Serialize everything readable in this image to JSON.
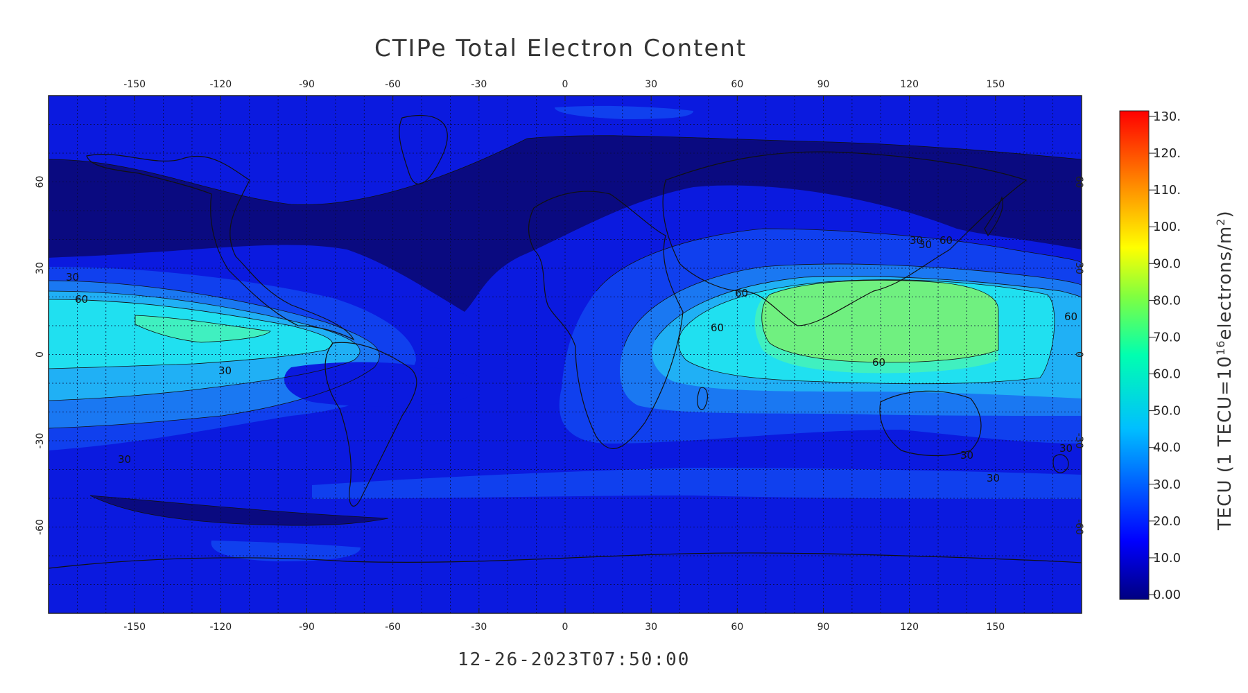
{
  "title": "CTIPe Total Electron Content",
  "timestamp": "12-26-2023T07:50:00",
  "colorbar": {
    "title_prefix": "TECU (1 TECU=10",
    "title_exponent": "16",
    "title_middle": "electrons/m",
    "title_square": "2",
    "title_suffix": ")",
    "ticks": [
      "130.",
      "120.",
      "110.",
      "100.",
      "90.0",
      "80.0",
      "70.0",
      "60.0",
      "50.0",
      "40.0",
      "30.0",
      "20.0",
      "10.0",
      "0.00"
    ]
  },
  "axes": {
    "lon_ticks": [
      "-150",
      "-120",
      "-90",
      "-60",
      "-30",
      "0",
      "30",
      "60",
      "90",
      "120",
      "150"
    ],
    "lat_ticks": [
      "60",
      "30",
      "0",
      "-30",
      "-60"
    ]
  },
  "contour_labels": [
    "30",
    "60",
    "30",
    "30",
    "60",
    "60",
    "60",
    "30",
    "30",
    "30",
    "30",
    "60",
    "60",
    "30"
  ],
  "map": {
    "projection": "cylindrical",
    "lon_range": [
      -180,
      180
    ],
    "lat_range": [
      -90,
      90
    ],
    "grid": true,
    "colors": {
      "level_0_10": "#0a0a80",
      "level_10_20": "#0b1adf",
      "level_20_30": "#1040ee",
      "level_30_40": "#1a78f2",
      "level_40_50": "#20b0f5",
      "level_50_60": "#20e0f0",
      "level_60_70": "#40f0c0",
      "level_70_80": "#70f080"
    }
  }
}
